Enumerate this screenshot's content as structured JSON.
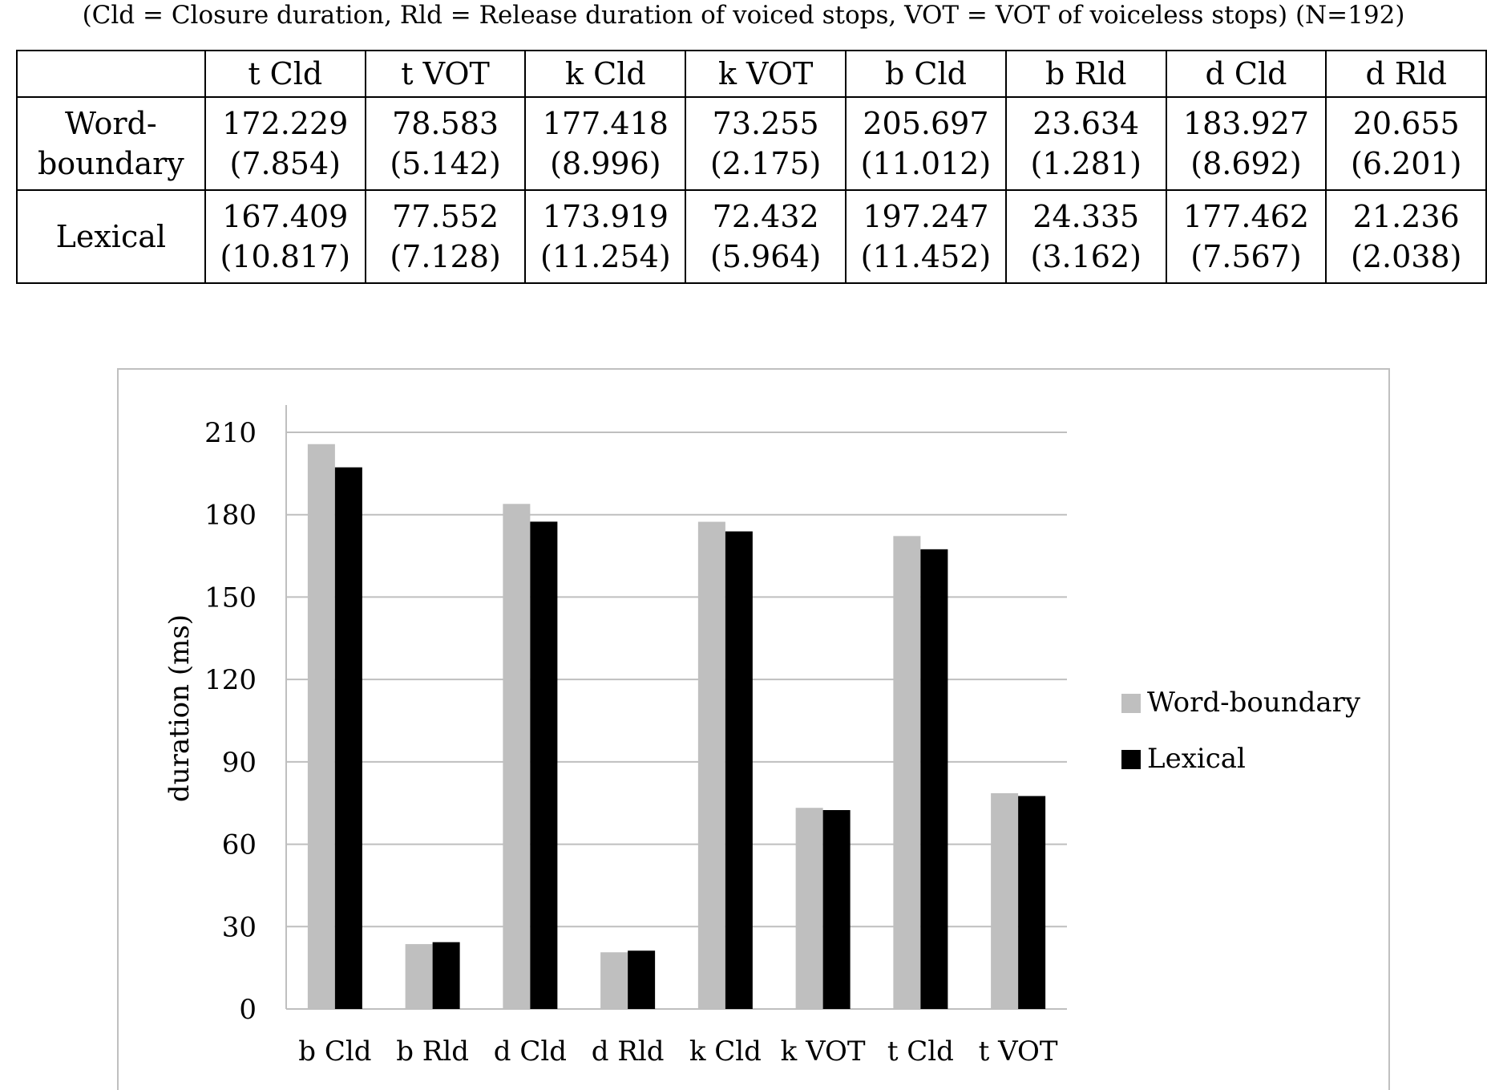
{
  "caption": "(Cld = Closure duration, Rld = Release duration of voiced stops, VOT = VOT of voiceless stops) (N=192)",
  "table": {
    "headers": [
      "",
      "t Cld",
      "t VOT",
      "k Cld",
      "k VOT",
      "b Cld",
      "b Rld",
      "d Cld",
      "d Rld"
    ],
    "rows": [
      {
        "label": [
          "Word-",
          "boundary"
        ],
        "cells": [
          [
            "172.229",
            "(7.854)"
          ],
          [
            "78.583",
            "(5.142)"
          ],
          [
            "177.418",
            "(8.996)"
          ],
          [
            "73.255",
            "(2.175)"
          ],
          [
            "205.697",
            "(11.012)"
          ],
          [
            "23.634",
            "(1.281)"
          ],
          [
            "183.927",
            "(8.692)"
          ],
          [
            "20.655",
            "(6.201)"
          ]
        ]
      },
      {
        "label": [
          "Lexical"
        ],
        "cells": [
          [
            "167.409",
            "(10.817)"
          ],
          [
            "77.552",
            "(7.128)"
          ],
          [
            "173.919",
            "(11.254)"
          ],
          [
            "72.432",
            "(5.964)"
          ],
          [
            "197.247",
            "(11.452)"
          ],
          [
            "24.335",
            "(3.162)"
          ],
          [
            "177.462",
            "(7.567)"
          ],
          [
            "21.236",
            "(2.038)"
          ]
        ]
      }
    ]
  },
  "chart_data": {
    "type": "bar",
    "categories": [
      "b Cld",
      "b Rld",
      "d Cld",
      "d Rld",
      "k Cld",
      "k VOT",
      "t Cld",
      "t VOT"
    ],
    "series": [
      {
        "name": "Word-boundary",
        "color": "#bfbfbf",
        "values": [
          205.697,
          23.634,
          183.927,
          20.655,
          177.418,
          73.255,
          172.229,
          78.583
        ]
      },
      {
        "name": "Lexical",
        "color": "#000000",
        "values": [
          197.247,
          24.335,
          177.462,
          21.236,
          173.919,
          72.432,
          167.409,
          77.552
        ]
      }
    ],
    "ylabel": "duration (ms)",
    "xlabel": "",
    "ylim": [
      0,
      210
    ],
    "yticks": [
      0,
      30,
      60,
      90,
      120,
      150,
      180,
      210
    ],
    "grid": true,
    "legend": "right"
  }
}
